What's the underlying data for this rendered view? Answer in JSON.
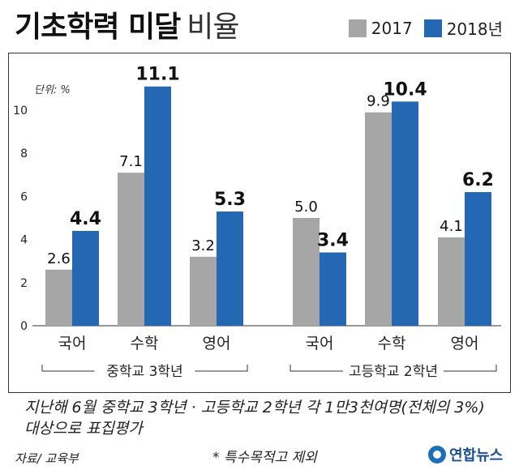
{
  "header": {
    "title_main": "기초학력 미달",
    "title_sub": "비율"
  },
  "colors": {
    "series_2017": "#a6a6a6",
    "series_2018": "#2468b4"
  },
  "chart_data": {
    "type": "bar",
    "unit_label": "단위: %",
    "ylim": [
      0,
      11
    ],
    "yticks": [
      0,
      2,
      4,
      6,
      8,
      10
    ],
    "groups": [
      {
        "name": "중학교 3학년",
        "categories": [
          "국어",
          "수학",
          "영어"
        ]
      },
      {
        "name": "고등학교 2학년",
        "categories": [
          "국어",
          "수학",
          "영어"
        ]
      }
    ],
    "series": [
      {
        "name": "2017",
        "values": [
          2.6,
          7.1,
          3.2,
          5.0,
          9.9,
          4.1
        ]
      },
      {
        "name": "2018년",
        "values": [
          4.4,
          11.1,
          5.3,
          3.4,
          10.4,
          6.2
        ]
      }
    ],
    "value_labels": {
      "2017": [
        "2.6",
        "7.1",
        "3.2",
        "5.0",
        "9.9",
        "4.1"
      ],
      "2018년": [
        "4.4",
        "11.1",
        "5.3",
        "3.4",
        "10.4",
        "6.2"
      ]
    }
  },
  "note": "지난해 6월 중학교 3학년 · 고등학교 2학년 각 1만3천여명(전체의 3%) 대상으로 표집평가",
  "source": "자료/ 교육부",
  "footnote": "* 특수목적고 제외",
  "logo_text": "연합뉴스"
}
